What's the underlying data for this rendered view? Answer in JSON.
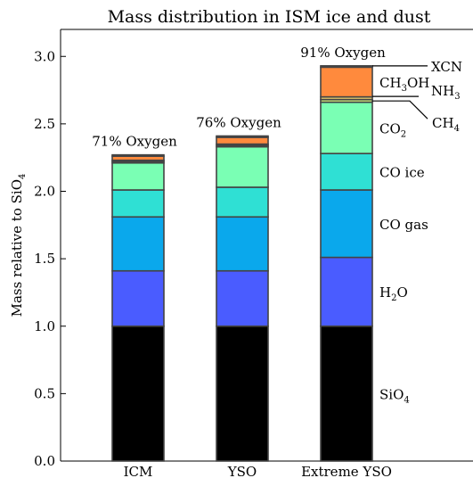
{
  "chart_data": {
    "type": "bar",
    "stacked": true,
    "title": "Mass distribution in ISM ice and dust",
    "xlabel": "",
    "ylabel": {
      "main": "Mass relative to SiO",
      "sub": "4"
    },
    "ylim": [
      0,
      3.2
    ],
    "yticks": [
      "0.0",
      "0.5",
      "1.0",
      "1.5",
      "2.0",
      "2.5",
      "3.0"
    ],
    "categories": [
      "ICM",
      "YSO",
      "Extreme YSO"
    ],
    "annotations": [
      "71% Oxygen",
      "76% Oxygen",
      "91% Oxygen"
    ],
    "series": [
      {
        "name": "SiO4",
        "label": {
          "main": "SiO",
          "sub": "4",
          "tail": ""
        },
        "color": "#000000",
        "values": [
          1.0,
          1.0,
          1.0
        ]
      },
      {
        "name": "H2O",
        "label": {
          "main": "H",
          "sub": "2",
          "tail": "O"
        },
        "color": "#4a5cff",
        "values": [
          0.41,
          0.41,
          0.51
        ]
      },
      {
        "name": "CO gas",
        "label": {
          "main": "CO gas",
          "sub": "",
          "tail": ""
        },
        "color": "#0aa8ec",
        "values": [
          0.4,
          0.4,
          0.5
        ]
      },
      {
        "name": "CO ice",
        "label": {
          "main": "CO ice",
          "sub": "",
          "tail": ""
        },
        "color": "#2fe0d4",
        "values": [
          0.2,
          0.22,
          0.27
        ]
      },
      {
        "name": "CO2",
        "label": {
          "main": "CO",
          "sub": "2",
          "tail": ""
        },
        "color": "#7affb4",
        "values": [
          0.2,
          0.3,
          0.38
        ]
      },
      {
        "name": "CH4",
        "label": {
          "main": "CH",
          "sub": "4",
          "tail": ""
        },
        "color": "#c8e27a",
        "values": [
          0.01,
          0.01,
          0.02
        ]
      },
      {
        "name": "NH3",
        "label": {
          "main": "NH",
          "sub": "3",
          "tail": ""
        },
        "color": "#e2c56a",
        "values": [
          0.01,
          0.01,
          0.02
        ]
      },
      {
        "name": "CH3OH",
        "label": {
          "main": "CH",
          "sub": "3",
          "tail": "OH"
        },
        "color": "#ff8a3d",
        "values": [
          0.03,
          0.05,
          0.22
        ]
      },
      {
        "name": "XCN",
        "label": {
          "main": "XCN",
          "sub": "",
          "tail": ""
        },
        "color": "#ff6040",
        "values": [
          0.01,
          0.01,
          0.01
        ]
      }
    ],
    "grid": false,
    "legend": "none; segment labels at right of last bar"
  }
}
